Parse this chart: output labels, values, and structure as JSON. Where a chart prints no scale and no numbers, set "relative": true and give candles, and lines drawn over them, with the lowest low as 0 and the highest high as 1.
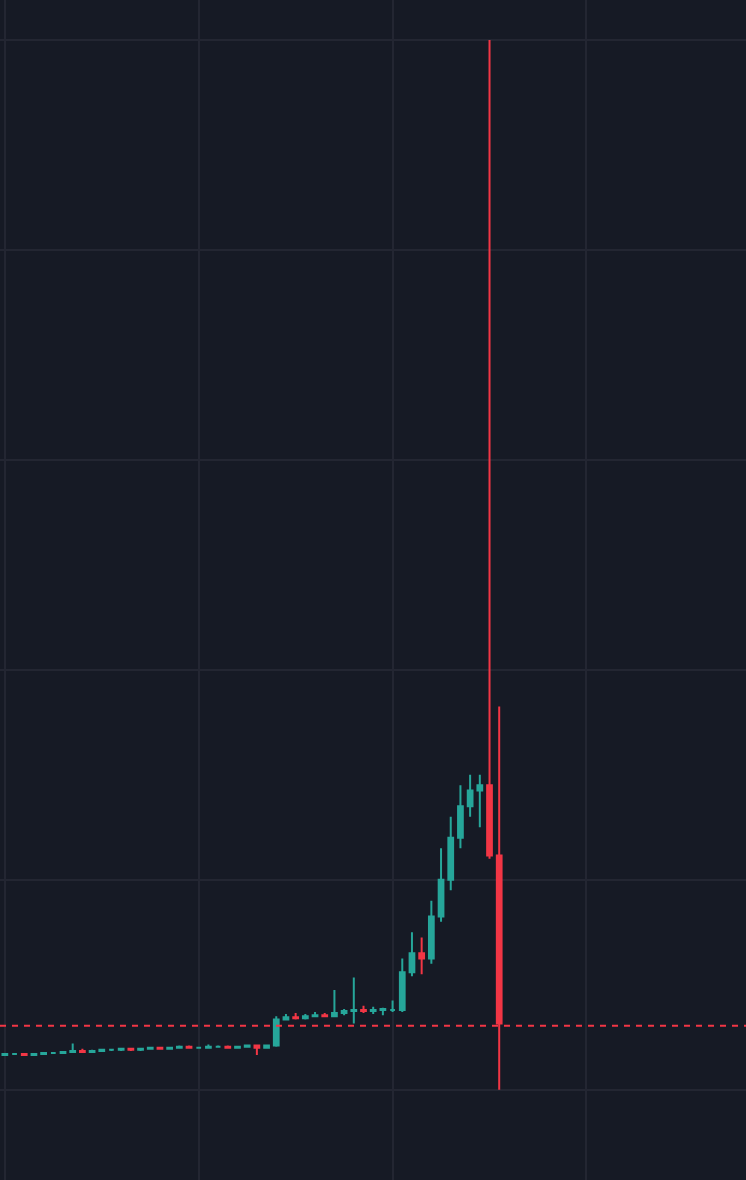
{
  "chart_data": {
    "type": "candlestick",
    "relative": true,
    "grid": true,
    "legend": false,
    "categories": [
      null,
      null,
      null,
      null,
      null,
      null,
      null,
      null,
      null,
      null,
      null,
      null,
      null,
      null,
      null,
      null,
      null,
      null,
      null,
      null,
      null,
      null,
      null,
      null,
      null,
      null,
      null,
      null,
      null,
      null,
      null,
      null,
      null,
      null,
      null,
      null,
      null,
      null,
      null,
      null,
      null,
      null,
      null,
      null,
      null,
      null,
      null,
      null,
      null,
      null,
      null,
      null
    ],
    "ohlc": [
      [
        0.033,
        0.034,
        0.032,
        0.034
      ],
      [
        0.034,
        0.035,
        0.033,
        0.034
      ],
      [
        0.034,
        0.035,
        0.033,
        0.033
      ],
      [
        0.033,
        0.035,
        0.032,
        0.034
      ],
      [
        0.034,
        0.036,
        0.033,
        0.035
      ],
      [
        0.035,
        0.036,
        0.034,
        0.035
      ],
      [
        0.035,
        0.037,
        0.034,
        0.036
      ],
      [
        0.036,
        0.044,
        0.035,
        0.037
      ],
      [
        0.037,
        0.039,
        0.036,
        0.036
      ],
      [
        0.036,
        0.038,
        0.035,
        0.037
      ],
      [
        0.037,
        0.038,
        0.036,
        0.038
      ],
      [
        0.038,
        0.039,
        0.037,
        0.038
      ],
      [
        0.038,
        0.04,
        0.037,
        0.039
      ],
      [
        0.039,
        0.04,
        0.037,
        0.038
      ],
      [
        0.038,
        0.039,
        0.037,
        0.039
      ],
      [
        0.039,
        0.041,
        0.038,
        0.04
      ],
      [
        0.04,
        0.041,
        0.038,
        0.039
      ],
      [
        0.039,
        0.04,
        0.038,
        0.04
      ],
      [
        0.04,
        0.042,
        0.039,
        0.041
      ],
      [
        0.041,
        0.042,
        0.039,
        0.04
      ],
      [
        0.04,
        0.041,
        0.039,
        0.04
      ],
      [
        0.04,
        0.043,
        0.039,
        0.041
      ],
      [
        0.041,
        0.042,
        0.04,
        0.041
      ],
      [
        0.041,
        0.042,
        0.04,
        0.04
      ],
      [
        0.04,
        0.041,
        0.039,
        0.041
      ],
      [
        0.041,
        0.043,
        0.04,
        0.042
      ],
      [
        0.042,
        0.043,
        0.033,
        0.04
      ],
      [
        0.04,
        0.043,
        0.039,
        0.042
      ],
      [
        0.042,
        0.07,
        0.041,
        0.067
      ],
      [
        0.067,
        0.072,
        0.066,
        0.069
      ],
      [
        0.069,
        0.073,
        0.067,
        0.068
      ],
      [
        0.068,
        0.072,
        0.067,
        0.07
      ],
      [
        0.07,
        0.074,
        0.069,
        0.071
      ],
      [
        0.071,
        0.073,
        0.069,
        0.07
      ],
      [
        0.07,
        0.095,
        0.069,
        0.073
      ],
      [
        0.073,
        0.077,
        0.071,
        0.075
      ],
      [
        0.075,
        0.107,
        0.063,
        0.076
      ],
      [
        0.076,
        0.08,
        0.073,
        0.075
      ],
      [
        0.075,
        0.079,
        0.072,
        0.076
      ],
      [
        0.076,
        0.078,
        0.071,
        0.077
      ],
      [
        0.076,
        0.085,
        0.074,
        0.076
      ],
      [
        0.076,
        0.125,
        0.074,
        0.112
      ],
      [
        0.112,
        0.15,
        0.108,
        0.13
      ],
      [
        0.13,
        0.145,
        0.11,
        0.125
      ],
      [
        0.125,
        0.18,
        0.12,
        0.165
      ],
      [
        0.165,
        0.23,
        0.16,
        0.2
      ],
      [
        0.2,
        0.26,
        0.19,
        0.24
      ],
      [
        0.24,
        0.29,
        0.23,
        0.27
      ],
      [
        0.27,
        0.3,
        0.26,
        0.285
      ],
      [
        0.285,
        0.3,
        0.25,
        0.29
      ],
      [
        0.29,
        1.0,
        0.22,
        0.223
      ],
      [
        0.223,
        0.365,
        0,
        0.063
      ]
    ],
    "colors": [
      "#26a69a",
      "#26a69a",
      "#f23645",
      "#26a69a",
      "#26a69a",
      "#26a69a",
      "#26a69a",
      "#26a69a",
      "#f23645",
      "#26a69a",
      "#26a69a",
      "#26a69a",
      "#26a69a",
      "#f23645",
      "#26a69a",
      "#26a69a",
      "#f23645",
      "#26a69a",
      "#26a69a",
      "#f23645",
      "#26a69a",
      "#26a69a",
      "#26a69a",
      "#f23645",
      "#26a69a",
      "#26a69a",
      "#f23645",
      "#26a69a",
      "#26a69a",
      "#26a69a",
      "#f23645",
      "#26a69a",
      "#26a69a",
      "#f23645",
      "#26a69a",
      "#26a69a",
      "#26a69a",
      "#f23645",
      "#26a69a",
      "#26a69a",
      "#26a69a",
      "#26a69a",
      "#26a69a",
      "#f23645",
      "#26a69a",
      "#26a69a",
      "#26a69a",
      "#26a69a",
      "#26a69a",
      "#26a69a",
      "#f23645",
      "#f23645"
    ],
    "ref_lines": [
      {
        "axis": "y",
        "value": 0.061,
        "color": "#f23645",
        "line_style": "dotted"
      }
    ]
  }
}
